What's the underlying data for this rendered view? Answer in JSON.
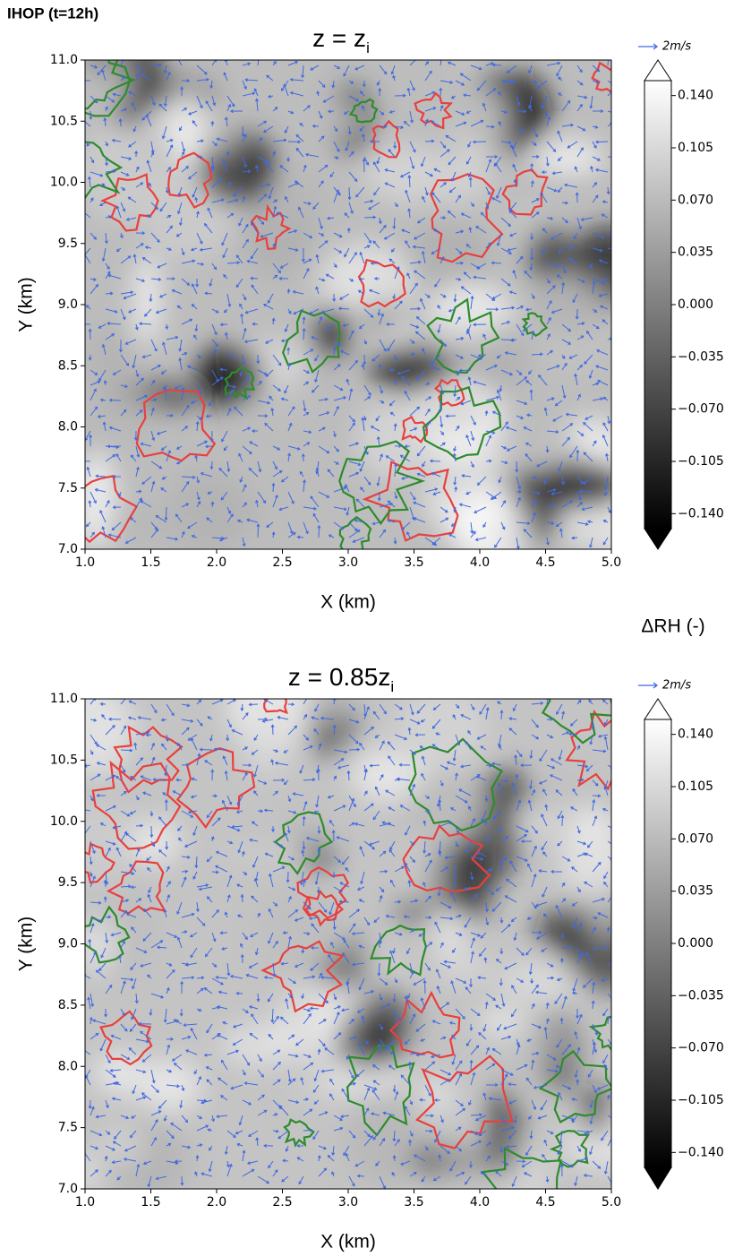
{
  "figure_title": "IHOP (t=12h)",
  "colorbar_label": "ΔRH (-)",
  "chart_data": [
    {
      "type": "heatmap",
      "title": "z = z",
      "title_subscript": "i",
      "xlabel": "X (km)",
      "ylabel": "Y (km)",
      "xlim": [
        1,
        5
      ],
      "ylim": [
        7,
        11
      ],
      "xticks": [
        {
          "value": 1,
          "label": "1.0"
        },
        {
          "value": 1.5,
          "label": "1.5"
        },
        {
          "value": 2,
          "label": "2.0"
        },
        {
          "value": 2.5,
          "label": "2.5"
        },
        {
          "value": 3,
          "label": "3.0"
        },
        {
          "value": 3.5,
          "label": "3.5"
        },
        {
          "value": 4,
          "label": "4.0"
        },
        {
          "value": 4.5,
          "label": "4.5"
        },
        {
          "value": 5,
          "label": "5.0"
        }
      ],
      "yticks": [
        {
          "value": 7,
          "label": "7.0"
        },
        {
          "value": 7.5,
          "label": "7.5"
        },
        {
          "value": 8,
          "label": "8.0"
        },
        {
          "value": 8.5,
          "label": "8.5"
        },
        {
          "value": 9,
          "label": "9.0"
        },
        {
          "value": 9.5,
          "label": "9.5"
        },
        {
          "value": 10,
          "label": "10.0"
        },
        {
          "value": 10.5,
          "label": "10.5"
        },
        {
          "value": 11,
          "label": "11.0"
        }
      ],
      "colorbar": {
        "clim": [
          -0.15,
          0.15
        ],
        "cmap": "gray",
        "ticks": [
          {
            "value": 0.14,
            "label": "0.140"
          },
          {
            "value": 0.105,
            "label": "0.105"
          },
          {
            "value": 0.07,
            "label": "0.070"
          },
          {
            "value": 0.035,
            "label": "0.035"
          },
          {
            "value": 0,
            "label": "0.000"
          },
          {
            "value": -0.035,
            "label": "−0.035"
          },
          {
            "value": -0.07,
            "label": "−0.070"
          },
          {
            "value": -0.105,
            "label": "−0.105"
          },
          {
            "value": -0.14,
            "label": "−0.140"
          }
        ]
      },
      "quiver_key": "2m/s",
      "quiver_color": "#4169e1",
      "contour_colors": [
        "#e8403f",
        "#2e8b2e"
      ]
    },
    {
      "type": "heatmap",
      "title": "z = 0.85z",
      "title_subscript": "i",
      "xlabel": "X (km)",
      "ylabel": "Y (km)",
      "xlim": [
        1,
        5
      ],
      "ylim": [
        7,
        11
      ],
      "xticks": [
        {
          "value": 1,
          "label": "1.0"
        },
        {
          "value": 1.5,
          "label": "1.5"
        },
        {
          "value": 2,
          "label": "2.0"
        },
        {
          "value": 2.5,
          "label": "2.5"
        },
        {
          "value": 3,
          "label": "3.0"
        },
        {
          "value": 3.5,
          "label": "3.5"
        },
        {
          "value": 4,
          "label": "4.0"
        },
        {
          "value": 4.5,
          "label": "4.5"
        },
        {
          "value": 5,
          "label": "5.0"
        }
      ],
      "yticks": [
        {
          "value": 7,
          "label": "7.0"
        },
        {
          "value": 7.5,
          "label": "7.5"
        },
        {
          "value": 8,
          "label": "8.0"
        },
        {
          "value": 8.5,
          "label": "8.5"
        },
        {
          "value": 9,
          "label": "9.0"
        },
        {
          "value": 9.5,
          "label": "9.5"
        },
        {
          "value": 10,
          "label": "10.0"
        },
        {
          "value": 10.5,
          "label": "10.5"
        },
        {
          "value": 11,
          "label": "11.0"
        }
      ],
      "colorbar": {
        "clim": [
          -0.15,
          0.15
        ],
        "cmap": "gray",
        "ticks": [
          {
            "value": 0.14,
            "label": "0.140"
          },
          {
            "value": 0.105,
            "label": "0.105"
          },
          {
            "value": 0.07,
            "label": "0.070"
          },
          {
            "value": 0.035,
            "label": "0.035"
          },
          {
            "value": 0,
            "label": "0.000"
          },
          {
            "value": -0.035,
            "label": "−0.035"
          },
          {
            "value": -0.07,
            "label": "−0.070"
          },
          {
            "value": -0.105,
            "label": "−0.105"
          },
          {
            "value": -0.14,
            "label": "−0.140"
          }
        ]
      },
      "quiver_key": "2m/s",
      "quiver_color": "#4169e1",
      "contour_colors": [
        "#e8403f",
        "#2e8b2e"
      ]
    }
  ]
}
